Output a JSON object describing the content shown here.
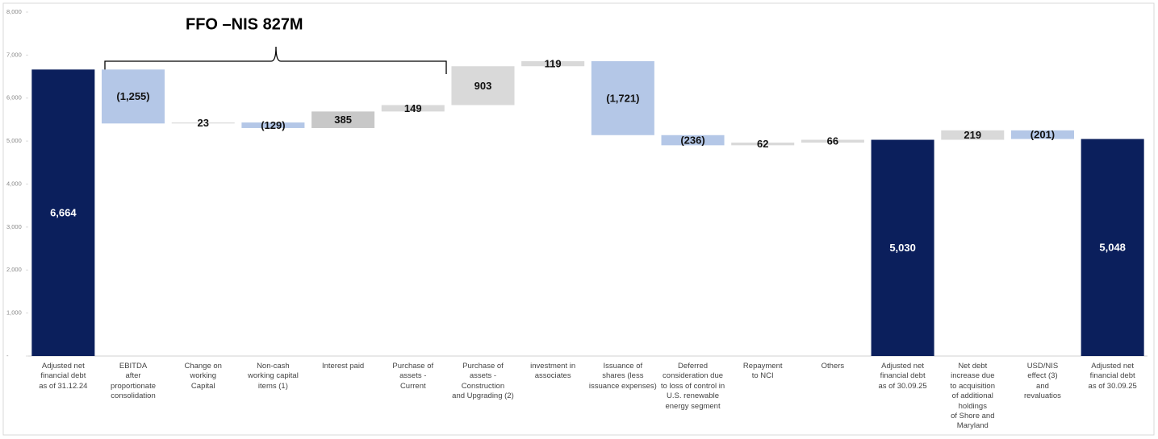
{
  "chart_data": {
    "type": "waterfall",
    "annotation": "FFO  –NIS 827M",
    "categories": [
      "Adjusted net\nfinancial debt\nas of 31.12.24",
      "EBITDA\nafter\nproportionate\nconsolidation",
      "Change on\nworking\nCapital",
      "Non-cash\nworking capital\nitems (1)",
      "Interest paid",
      "Purchase of\nassets -\nCurrent",
      "Purchase of\nassets -\nConstruction\nand Upgrading (2)",
      "investment in\nassociates",
      "Issuance of\nshares (less\nissuance expenses)",
      "Deferred\nconsideration due\nto loss of control in\nU.S. renewable\nenergy segment",
      "Repayment\nto NCI",
      "Others",
      "Adjusted net\nfinancial debt\nas of 30.09.25",
      "Net debt\nincrease due\nto acquisition\nof additional\nholdings\nof Shore and\nMaryland",
      "USD/NIS\neffect (3)\nand\nrevaluatios",
      "Adjusted net\nfinancial debt\nas of 30.09.25"
    ],
    "measure": [
      "absolute",
      "relative",
      "relative",
      "relative",
      "relative",
      "relative",
      "relative",
      "relative",
      "relative",
      "relative",
      "relative",
      "relative",
      "absolute",
      "relative",
      "relative",
      "absolute"
    ],
    "values": [
      6664,
      -1255,
      23,
      -129,
      385,
      149,
      903,
      119,
      -1721,
      -236,
      62,
      66,
      5030,
      219,
      -201,
      5048
    ],
    "value_labels": [
      "6,664",
      "(1,255)",
      "23",
      "(129)",
      "385",
      "149",
      "903",
      "119",
      "(1,721)",
      "(236)",
      "62",
      "66",
      "5,030",
      "219",
      "(201)",
      "5,048"
    ],
    "colors": [
      "#0b1f5c",
      "#b4c7e7",
      "#d9d9d9",
      "#b4c7e7",
      "#c8c8c8",
      "#d9d9d9",
      "#d9d9d9",
      "#d9d9d9",
      "#b4c7e7",
      "#b4c7e7",
      "#d9d9d9",
      "#d9d9d9",
      "#0b1f5c",
      "#d9d9d9",
      "#b4c7e7",
      "#0b1f5c"
    ],
    "ylim": [
      0,
      8000
    ],
    "yticks": [
      {
        "value": 0,
        "label": "-"
      },
      {
        "value": 1000,
        "label": "1,000"
      },
      {
        "value": 2000,
        "label": "2,000"
      },
      {
        "value": 3000,
        "label": "3,000"
      },
      {
        "value": 4000,
        "label": "4,000"
      },
      {
        "value": 5000,
        "label": "5,000"
      },
      {
        "value": 6000,
        "label": "6,000"
      },
      {
        "value": 7000,
        "label": "7,000"
      },
      {
        "value": 8000,
        "label": "8,000"
      }
    ]
  }
}
